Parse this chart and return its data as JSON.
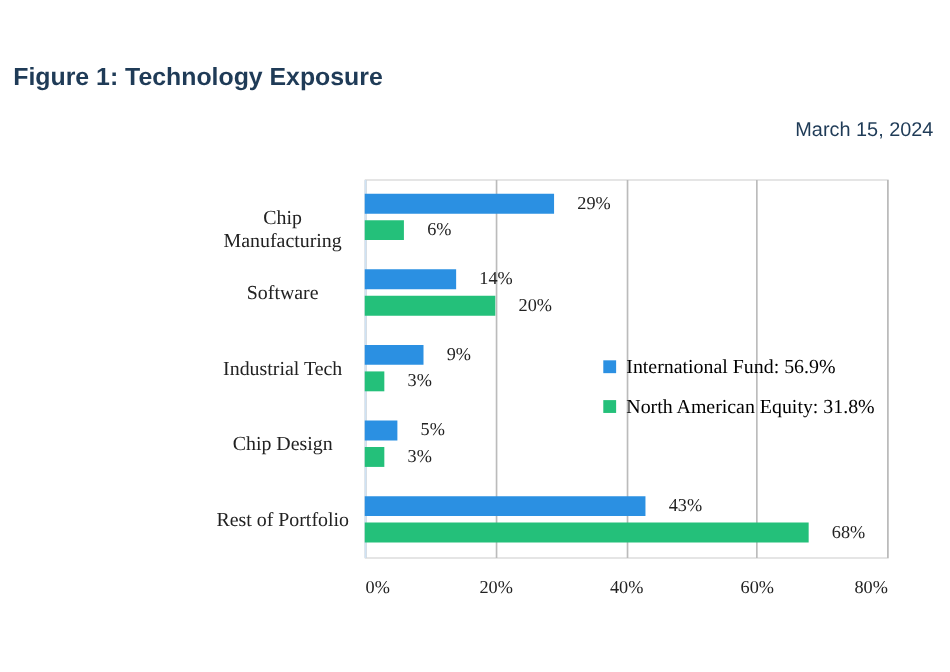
{
  "chart_data": {
    "type": "bar",
    "orientation": "horizontal",
    "title": "Figure 1: Technology Exposure",
    "annotations": [
      "March 15, 2024"
    ],
    "categories": [
      "Chip Manufacturing",
      "Software",
      "Industrial Tech",
      "Chip Design",
      "Rest of Portfolio"
    ],
    "series": [
      {
        "name": "International Fund: 56.9%",
        "color": "#2b90e2",
        "values": [
          29,
          14,
          9,
          5,
          43
        ],
        "value_labels": [
          "29%",
          "14%",
          "9%",
          "5%",
          "43%"
        ]
      },
      {
        "name": "North American Equity: 31.8%",
        "color": "#24c07a",
        "values": [
          6,
          20,
          3,
          3,
          68
        ],
        "value_labels": [
          "6%",
          "20%",
          "3%",
          "3%",
          "68%"
        ]
      }
    ],
    "xlim": [
      0,
      80
    ],
    "xticks": [
      {
        "value": 0,
        "label": "0%"
      },
      {
        "value": 20,
        "label": "20%"
      },
      {
        "value": 40,
        "label": "40%"
      },
      {
        "value": 60,
        "label": "60%"
      },
      {
        "value": 80,
        "label": "80%"
      }
    ],
    "grid": "x",
    "legend": "right"
  }
}
